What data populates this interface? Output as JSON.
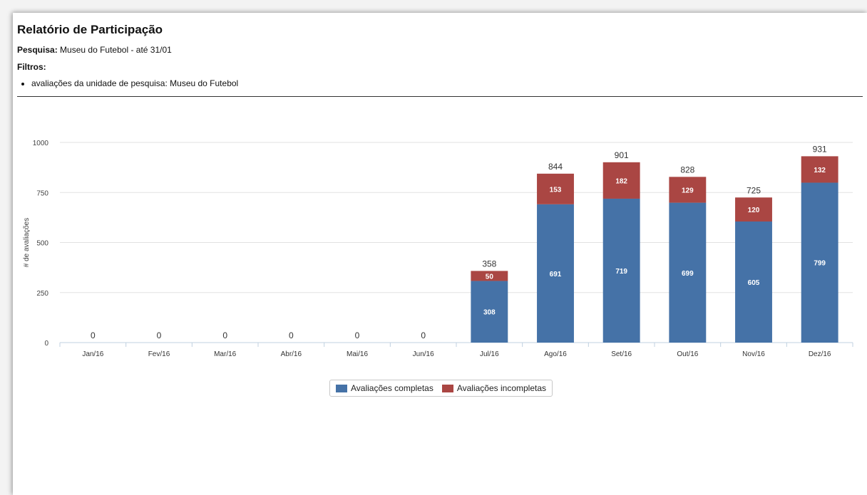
{
  "report": {
    "title": "Relatório de Participação",
    "survey_label": "Pesquisa:",
    "survey_value": "Museu do Futebol - até 31/01",
    "filters_label": "Filtros:",
    "filters": [
      "avaliações da unidade de pesquisa: Museu do Futebol"
    ]
  },
  "colors": {
    "complete": "#4572a7",
    "incomplete": "#aa4643"
  },
  "chart_data": {
    "type": "bar",
    "stacked": true,
    "categories": [
      "Jan/16",
      "Fev/16",
      "Mar/16",
      "Abr/16",
      "Mai/16",
      "Jun/16",
      "Jul/16",
      "Ago/16",
      "Set/16",
      "Out/16",
      "Nov/16",
      "Dez/16"
    ],
    "series": [
      {
        "name": "Avaliações completas",
        "values": [
          0,
          0,
          0,
          0,
          0,
          0,
          308,
          691,
          719,
          699,
          605,
          799
        ]
      },
      {
        "name": "Avaliações incompletas",
        "values": [
          0,
          0,
          0,
          0,
          0,
          0,
          50,
          153,
          182,
          129,
          120,
          132
        ]
      }
    ],
    "totals": [
      0,
      0,
      0,
      0,
      0,
      0,
      358,
      844,
      901,
      828,
      725,
      931
    ],
    "ylabel": "# de avaliações",
    "xlabel": "",
    "ylim": [
      0,
      1000
    ],
    "yticks": [
      0,
      250,
      500,
      750,
      1000
    ],
    "grid": true,
    "legend": "bottom-center"
  }
}
